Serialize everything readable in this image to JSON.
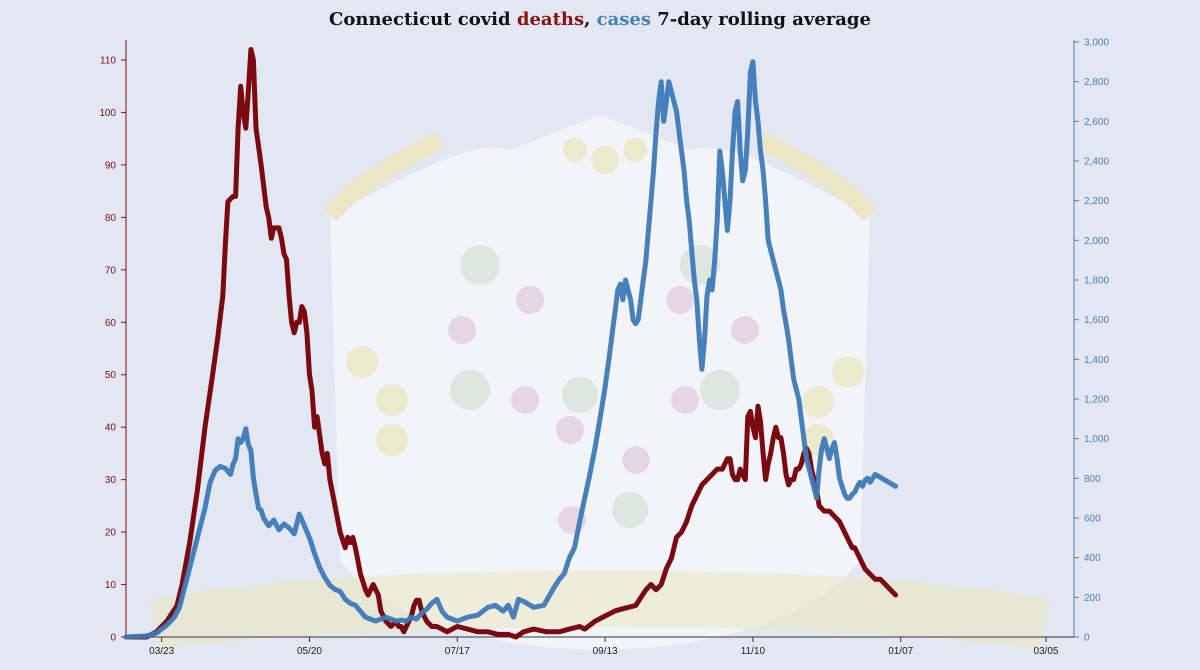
{
  "chart_data": {
    "type": "line",
    "title": {
      "prefix": "Connecticut covid ",
      "deaths_word": "deaths",
      "separator": ", ",
      "cases_word": "cases",
      "suffix": " 7-day rolling average"
    },
    "colors": {
      "deaths": "#7a0a10",
      "cases": "#3d7ab8",
      "title_deaths": "#8b1010",
      "title_cases": "#4682b4"
    },
    "y_left": {
      "min": 0,
      "max": 110,
      "ticks": [
        0,
        10,
        20,
        30,
        40,
        50,
        60,
        70,
        80,
        90,
        100,
        110
      ]
    },
    "y_right": {
      "min": 0,
      "max": 3000,
      "ticks": [
        0,
        200,
        400,
        600,
        800,
        1000,
        1200,
        1400,
        1600,
        1800,
        2000,
        2200,
        2400,
        2600,
        2800,
        3000
      ],
      "tick_labels": [
        "0",
        "200",
        "400",
        "600",
        "800",
        "1,000",
        "1,200",
        "1,400",
        "1,600",
        "1,800",
        "2,000",
        "2,200",
        "2,400",
        "2,600",
        "2,800",
        "3,000"
      ]
    },
    "x_ticks": [
      {
        "label": "03/23",
        "day": 14
      },
      {
        "label": "05/20",
        "day": 72
      },
      {
        "label": "07/17",
        "day": 130
      },
      {
        "label": "09/13",
        "day": 188
      },
      {
        "label": "11/10",
        "day": 246
      },
      {
        "label": "01/07",
        "day": 304
      },
      {
        "label": "03/05",
        "day": 361
      }
    ],
    "x_range": [
      0,
      372
    ],
    "deaths": [
      [
        0,
        0
      ],
      [
        8,
        0
      ],
      [
        12,
        1
      ],
      [
        16,
        3
      ],
      [
        20,
        6
      ],
      [
        22,
        10
      ],
      [
        25,
        18
      ],
      [
        28,
        28
      ],
      [
        31,
        40
      ],
      [
        34,
        50
      ],
      [
        36,
        57
      ],
      [
        38,
        65
      ],
      [
        39,
        75
      ],
      [
        40,
        83
      ],
      [
        42,
        84
      ],
      [
        43,
        84
      ],
      [
        44,
        97
      ],
      [
        45,
        105
      ],
      [
        46,
        100
      ],
      [
        47,
        97
      ],
      [
        48,
        104
      ],
      [
        49,
        112
      ],
      [
        50,
        110
      ],
      [
        51,
        97
      ],
      [
        53,
        90
      ],
      [
        55,
        82
      ],
      [
        56,
        80
      ],
      [
        57,
        76
      ],
      [
        58,
        78
      ],
      [
        60,
        78
      ],
      [
        61,
        76
      ],
      [
        62,
        73
      ],
      [
        63,
        72
      ],
      [
        64,
        65
      ],
      [
        65,
        60
      ],
      [
        66,
        58
      ],
      [
        67,
        60
      ],
      [
        68,
        60
      ],
      [
        69,
        63
      ],
      [
        70,
        62
      ],
      [
        71,
        58
      ],
      [
        72,
        50
      ],
      [
        73,
        47
      ],
      [
        74,
        40
      ],
      [
        75,
        42
      ],
      [
        77,
        35
      ],
      [
        78,
        33
      ],
      [
        79,
        35
      ],
      [
        80,
        30
      ],
      [
        82,
        25
      ],
      [
        84,
        20
      ],
      [
        86,
        17
      ],
      [
        87,
        19
      ],
      [
        88,
        18
      ],
      [
        89,
        19
      ],
      [
        90,
        17
      ],
      [
        92,
        12
      ],
      [
        94,
        9
      ],
      [
        95,
        8
      ],
      [
        96,
        9
      ],
      [
        97,
        10
      ],
      [
        98,
        9
      ],
      [
        99,
        8
      ],
      [
        100,
        5
      ],
      [
        102,
        3
      ],
      [
        104,
        2
      ],
      [
        106,
        3
      ],
      [
        107,
        2
      ],
      [
        108,
        2
      ],
      [
        109,
        1
      ],
      [
        110,
        2
      ],
      [
        112,
        4
      ],
      [
        113,
        6
      ],
      [
        114,
        7
      ],
      [
        115,
        7
      ],
      [
        116,
        5
      ],
      [
        118,
        3
      ],
      [
        120,
        2
      ],
      [
        122,
        2
      ],
      [
        124,
        1.5
      ],
      [
        126,
        1
      ],
      [
        128,
        1.5
      ],
      [
        130,
        2
      ],
      [
        134,
        1.5
      ],
      [
        138,
        1
      ],
      [
        142,
        1
      ],
      [
        146,
        0.5
      ],
      [
        150,
        0.5
      ],
      [
        153,
        0
      ],
      [
        156,
        1
      ],
      [
        160,
        1.5
      ],
      [
        165,
        1
      ],
      [
        170,
        1
      ],
      [
        174,
        1.5
      ],
      [
        178,
        2
      ],
      [
        180,
        1.5
      ],
      [
        184,
        3
      ],
      [
        188,
        4
      ],
      [
        192,
        5
      ],
      [
        196,
        5.5
      ],
      [
        200,
        6
      ],
      [
        204,
        9
      ],
      [
        206,
        10
      ],
      [
        208,
        9
      ],
      [
        210,
        10
      ],
      [
        212,
        13
      ],
      [
        214,
        15
      ],
      [
        216,
        19
      ],
      [
        218,
        20
      ],
      [
        220,
        22
      ],
      [
        222,
        25
      ],
      [
        224,
        27
      ],
      [
        226,
        29
      ],
      [
        228,
        30
      ],
      [
        230,
        31
      ],
      [
        232,
        32
      ],
      [
        234,
        32
      ],
      [
        235,
        33
      ],
      [
        236,
        34
      ],
      [
        237,
        34
      ],
      [
        238,
        31
      ],
      [
        239,
        30
      ],
      [
        240,
        30
      ],
      [
        241,
        32
      ],
      [
        242,
        31
      ],
      [
        243,
        30
      ],
      [
        244,
        42
      ],
      [
        245,
        43
      ],
      [
        246,
        40
      ],
      [
        247,
        38
      ],
      [
        248,
        44
      ],
      [
        249,
        41
      ],
      [
        250,
        35
      ],
      [
        251,
        30
      ],
      [
        252,
        33
      ],
      [
        253,
        35
      ],
      [
        254,
        38
      ],
      [
        255,
        40
      ],
      [
        256,
        38
      ],
      [
        257,
        38
      ],
      [
        258,
        35
      ],
      [
        259,
        31
      ],
      [
        260,
        29
      ],
      [
        261,
        30
      ],
      [
        262,
        30
      ],
      [
        263,
        32
      ],
      [
        264,
        32
      ],
      [
        265,
        33
      ],
      [
        266,
        35
      ],
      [
        267,
        36
      ],
      [
        268,
        35
      ],
      [
        269,
        32
      ],
      [
        270,
        30
      ],
      [
        271,
        28
      ],
      [
        272,
        25
      ],
      [
        274,
        24
      ],
      [
        276,
        24
      ],
      [
        278,
        23
      ],
      [
        280,
        22
      ],
      [
        282,
        20
      ],
      [
        284,
        18
      ],
      [
        285,
        17
      ],
      [
        286,
        17
      ],
      [
        288,
        15
      ],
      [
        290,
        13
      ],
      [
        292,
        12
      ],
      [
        294,
        11
      ],
      [
        296,
        11
      ],
      [
        298,
        10
      ],
      [
        300,
        9
      ],
      [
        302,
        8
      ]
    ],
    "cases": [
      [
        0,
        0
      ],
      [
        8,
        5
      ],
      [
        12,
        20
      ],
      [
        16,
        60
      ],
      [
        19,
        100
      ],
      [
        21,
        150
      ],
      [
        23,
        250
      ],
      [
        25,
        350
      ],
      [
        27,
        450
      ],
      [
        29,
        550
      ],
      [
        31,
        650
      ],
      [
        33,
        780
      ],
      [
        35,
        840
      ],
      [
        37,
        860
      ],
      [
        39,
        850
      ],
      [
        41,
        820
      ],
      [
        42,
        870
      ],
      [
        43,
        900
      ],
      [
        44,
        1000
      ],
      [
        45,
        980
      ],
      [
        46,
        1000
      ],
      [
        47,
        1050
      ],
      [
        48,
        970
      ],
      [
        49,
        940
      ],
      [
        50,
        800
      ],
      [
        51,
        720
      ],
      [
        52,
        650
      ],
      [
        53,
        640
      ],
      [
        54,
        600
      ],
      [
        56,
        560
      ],
      [
        58,
        590
      ],
      [
        60,
        540
      ],
      [
        62,
        570
      ],
      [
        64,
        550
      ],
      [
        66,
        520
      ],
      [
        68,
        620
      ],
      [
        70,
        560
      ],
      [
        72,
        500
      ],
      [
        74,
        420
      ],
      [
        76,
        350
      ],
      [
        78,
        300
      ],
      [
        80,
        260
      ],
      [
        82,
        240
      ],
      [
        84,
        230
      ],
      [
        86,
        190
      ],
      [
        88,
        170
      ],
      [
        90,
        160
      ],
      [
        92,
        130
      ],
      [
        94,
        100
      ],
      [
        96,
        90
      ],
      [
        98,
        80
      ],
      [
        100,
        90
      ],
      [
        102,
        100
      ],
      [
        104,
        90
      ],
      [
        106,
        80
      ],
      [
        108,
        85
      ],
      [
        110,
        80
      ],
      [
        112,
        100
      ],
      [
        114,
        90
      ],
      [
        116,
        120
      ],
      [
        118,
        140
      ],
      [
        120,
        170
      ],
      [
        122,
        190
      ],
      [
        124,
        130
      ],
      [
        126,
        100
      ],
      [
        128,
        90
      ],
      [
        130,
        80
      ],
      [
        134,
        100
      ],
      [
        138,
        110
      ],
      [
        142,
        150
      ],
      [
        145,
        160
      ],
      [
        148,
        130
      ],
      [
        150,
        160
      ],
      [
        152,
        100
      ],
      [
        154,
        190
      ],
      [
        156,
        180
      ],
      [
        160,
        150
      ],
      [
        164,
        160
      ],
      [
        168,
        250
      ],
      [
        170,
        290
      ],
      [
        172,
        320
      ],
      [
        174,
        400
      ],
      [
        176,
        450
      ],
      [
        178,
        580
      ],
      [
        180,
        700
      ],
      [
        182,
        820
      ],
      [
        184,
        950
      ],
      [
        186,
        1100
      ],
      [
        188,
        1260
      ],
      [
        190,
        1450
      ],
      [
        191,
        1550
      ],
      [
        192,
        1650
      ],
      [
        193,
        1750
      ],
      [
        194,
        1780
      ],
      [
        195,
        1700
      ],
      [
        196,
        1800
      ],
      [
        197,
        1750
      ],
      [
        198,
        1700
      ],
      [
        199,
        1600
      ],
      [
        200,
        1580
      ],
      [
        201,
        1600
      ],
      [
        202,
        1700
      ],
      [
        203,
        1800
      ],
      [
        204,
        1900
      ],
      [
        205,
        2050
      ],
      [
        206,
        2200
      ],
      [
        207,
        2350
      ],
      [
        208,
        2550
      ],
      [
        209,
        2700
      ],
      [
        210,
        2800
      ],
      [
        211,
        2600
      ],
      [
        212,
        2700
      ],
      [
        213,
        2800
      ],
      [
        214,
        2750
      ],
      [
        215,
        2700
      ],
      [
        216,
        2650
      ],
      [
        217,
        2550
      ],
      [
        218,
        2450
      ],
      [
        219,
        2350
      ],
      [
        220,
        2200
      ],
      [
        221,
        2100
      ],
      [
        222,
        1950
      ],
      [
        223,
        1800
      ],
      [
        224,
        1700
      ],
      [
        225,
        1500
      ],
      [
        226,
        1350
      ],
      [
        227,
        1500
      ],
      [
        228,
        1720
      ],
      [
        229,
        1800
      ],
      [
        230,
        1750
      ],
      [
        231,
        1900
      ],
      [
        232,
        2100
      ],
      [
        233,
        2450
      ],
      [
        234,
        2350
      ],
      [
        235,
        2200
      ],
      [
        236,
        2050
      ],
      [
        237,
        2200
      ],
      [
        238,
        2450
      ],
      [
        239,
        2650
      ],
      [
        240,
        2700
      ],
      [
        241,
        2450
      ],
      [
        242,
        2300
      ],
      [
        243,
        2350
      ],
      [
        244,
        2550
      ],
      [
        245,
        2850
      ],
      [
        246,
        2900
      ],
      [
        247,
        2700
      ],
      [
        248,
        2600
      ],
      [
        249,
        2450
      ],
      [
        250,
        2350
      ],
      [
        251,
        2200
      ],
      [
        252,
        2000
      ],
      [
        253,
        1950
      ],
      [
        254,
        1900
      ],
      [
        255,
        1850
      ],
      [
        256,
        1800
      ],
      [
        257,
        1750
      ],
      [
        258,
        1650
      ],
      [
        259,
        1580
      ],
      [
        260,
        1500
      ],
      [
        261,
        1400
      ],
      [
        262,
        1300
      ],
      [
        263,
        1250
      ],
      [
        264,
        1200
      ],
      [
        265,
        1100
      ],
      [
        266,
        1000
      ],
      [
        267,
        900
      ],
      [
        268,
        850
      ],
      [
        269,
        800
      ],
      [
        270,
        750
      ],
      [
        271,
        700
      ],
      [
        272,
        850
      ],
      [
        273,
        950
      ],
      [
        274,
        1000
      ],
      [
        275,
        950
      ],
      [
        276,
        900
      ],
      [
        277,
        950
      ],
      [
        278,
        980
      ],
      [
        279,
        900
      ],
      [
        280,
        800
      ],
      [
        281,
        760
      ],
      [
        282,
        720
      ],
      [
        283,
        700
      ],
      [
        284,
        700
      ],
      [
        285,
        720
      ],
      [
        286,
        730
      ],
      [
        287,
        760
      ],
      [
        288,
        780
      ],
      [
        289,
        760
      ],
      [
        290,
        790
      ],
      [
        291,
        800
      ],
      [
        292,
        780
      ],
      [
        293,
        800
      ],
      [
        294,
        820
      ],
      [
        302,
        760
      ]
    ],
    "grid": false,
    "legend": "none"
  }
}
